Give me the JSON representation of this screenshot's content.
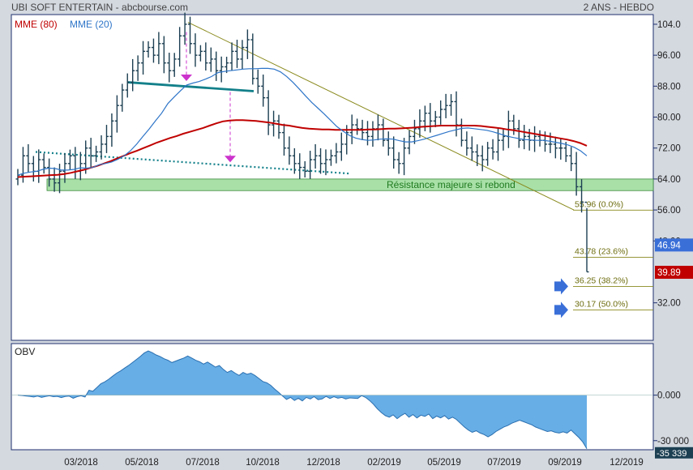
{
  "header": {
    "title": "UBI SOFT ENTERTAIN - abcbourse.com",
    "period": "2 ANS - HEBDO"
  },
  "legend": [
    {
      "name": "MME (80)",
      "color": "#c00000"
    },
    {
      "name": "MME (20)",
      "color": "#2e75c8"
    }
  ],
  "colors": {
    "bars": "#1c3f52",
    "ema80": "#c00000",
    "ema20": "#2e75c8",
    "fibo": "#8a8a1e",
    "support_zone": "#a8e0a8",
    "trendline": "#8a8a1e",
    "obv_fill": "#67aee6",
    "panel_bg": "#ffffff"
  },
  "chart_data": [
    {
      "type": "bar",
      "title": "UBI SOFT ENTERTAIN",
      "subtitle": "2 ANS - HEBDO",
      "xlabel": "",
      "ylabel": "",
      "ylim": [
        22.3,
        106.5
      ],
      "yticks": [
        "104.0",
        "96.00",
        "88.00",
        "80.00",
        "72.00",
        "64.00",
        "56.00",
        "48.00",
        "32.00"
      ],
      "xticks": [
        "03/2018",
        "05/2018",
        "07/2018",
        "10/2018",
        "12/2018",
        "02/2019",
        "05/2019",
        "07/2019",
        "09/2019",
        "12/2019"
      ],
      "price_labels": [
        {
          "value": 46.94,
          "label": "46.94",
          "color": "#3a6fd8"
        },
        {
          "value": 39.89,
          "label": "39.89",
          "color": "#c00000"
        }
      ],
      "fibonacci_levels": [
        {
          "value": 55.96,
          "label": "55.96",
          "pct": "(0.0%)"
        },
        {
          "value": 43.78,
          "label": "43.78",
          "pct": "(23.6%)"
        },
        {
          "value": 36.25,
          "label": "36.25",
          "pct": "(38.2%)"
        },
        {
          "value": 30.17,
          "label": "30.17",
          "pct": "(50.0%)"
        }
      ],
      "annotation": "Résistance majeure si rebond",
      "resistance_zone": [
        61,
        64
      ],
      "close_series": [
        65,
        70,
        68,
        66,
        69,
        67,
        64,
        63,
        66,
        68,
        70,
        66,
        68,
        72,
        70,
        71,
        73,
        75,
        79,
        83,
        87,
        89,
        92,
        94,
        97,
        98,
        96,
        99,
        94,
        92,
        95,
        101,
        104,
        99,
        96,
        97,
        94,
        95,
        92,
        93,
        94,
        97,
        95,
        98,
        100,
        90,
        88,
        85,
        78,
        79,
        76,
        72,
        70,
        68,
        67,
        66,
        69,
        70,
        68,
        69,
        70,
        71,
        73,
        76,
        78,
        77,
        76,
        75,
        77,
        78,
        74,
        72,
        69,
        68,
        72,
        75,
        77,
        79,
        81,
        79,
        80,
        82,
        83,
        84,
        78,
        74,
        72,
        71,
        70,
        69,
        72,
        71,
        74,
        75,
        79,
        77,
        74,
        75,
        74,
        75,
        74,
        73,
        73,
        72,
        72,
        70,
        68,
        62,
        58,
        40
      ],
      "ema20_series": [
        65,
        65.5,
        65.8,
        66,
        66.5,
        66.8,
        66.7,
        66.3,
        66.3,
        66.5,
        66.9,
        66.8,
        67,
        67.7,
        68,
        68.4,
        69.1,
        70,
        71.3,
        73,
        75,
        76.9,
        79,
        81,
        83.5,
        85.2,
        86.8,
        88.3,
        88.8,
        89.2,
        89.8,
        90.5,
        91.5,
        91.8,
        92,
        92.2,
        92.4,
        92.5,
        92.5,
        92.6,
        92.6,
        92.4,
        91.7,
        90.5,
        89,
        87.3,
        85.5,
        83.8,
        82.3,
        80.8,
        79.2,
        77.6,
        76.4,
        75.3,
        74.6,
        74.2,
        74,
        74.1,
        74.3,
        74.4,
        74.3,
        73.9,
        73.6,
        73.6,
        73.9,
        74.3,
        74.8,
        75.3,
        75.8,
        76.3,
        76.7,
        77.1,
        77.2,
        77,
        76.8,
        76.6,
        76.2,
        75.7,
        75.2,
        74.8,
        74.5,
        74.2,
        74.1,
        74,
        74,
        73.8,
        73.5,
        73.2,
        72.8,
        72.2,
        71.3,
        70
      ],
      "ema80_series": [
        64.5,
        64.6,
        64.7,
        64.8,
        64.9,
        65,
        65.1,
        65.3,
        65.6,
        66,
        66.4,
        66.9,
        67.4,
        68,
        68.6,
        69.3,
        70,
        70.7,
        71.3,
        72,
        72.7,
        73.4,
        74,
        74.6,
        75.1,
        75.7,
        76.2,
        76.7,
        77.2,
        77.8,
        78.4,
        78.9,
        79.1,
        79.2,
        79.2,
        79.1,
        79,
        78.8,
        78.6,
        78.3,
        78,
        77.8,
        77.5,
        77.2,
        77,
        76.9,
        76.8,
        76.8,
        76.7,
        76.7,
        76.7,
        76.7,
        76.7,
        76.8,
        76.8,
        76.9,
        77,
        77,
        77.1,
        77.2,
        77.3,
        77.5,
        77.6,
        77.7,
        77.8,
        77.8,
        77.8,
        77.8,
        77.8,
        77.8,
        77.7,
        77.5,
        77.3,
        77.1,
        76.8,
        76.6,
        76.3,
        76,
        75.7,
        75.4,
        75.1,
        74.8,
        74.5,
        74.2,
        73.8,
        73.3,
        72.6
      ]
    },
    {
      "type": "area",
      "title": "OBV",
      "ylim": [
        -36000,
        34000
      ],
      "yticks": [
        "0.000",
        "-30 000"
      ],
      "last_value_label": "-35 339",
      "series": [
        0,
        -200,
        -500,
        -800,
        -1200,
        -600,
        -1500,
        -900,
        -400,
        -1000,
        -800,
        -1600,
        -900,
        -600,
        -2000,
        -1000,
        -400,
        -1200,
        3200,
        2600,
        5000,
        7500,
        8800,
        10500,
        12500,
        14500,
        16000,
        17800,
        19500,
        21500,
        23500,
        25500,
        27800,
        29200,
        28000,
        26500,
        25500,
        24000,
        23000,
        21500,
        22500,
        23500,
        24500,
        25800,
        24500,
        23000,
        22000,
        20500,
        21800,
        20200,
        18500,
        19500,
        17000,
        15000,
        16200,
        14500,
        13000,
        15000,
        13800,
        14500,
        13000,
        11000,
        9000,
        8200,
        6500,
        4000,
        1800,
        -500,
        -2800,
        -1500,
        -3500,
        -2000,
        -3800,
        -1500,
        -2500,
        -1000,
        -3000,
        -2500,
        -800,
        -2200,
        -1000,
        -2000,
        -1500,
        -2500,
        -1800,
        -2000,
        -2200,
        -300,
        -1500,
        -3500,
        -6000,
        -9000,
        -11500,
        -13500,
        -14500,
        -13000,
        -15500,
        -13500,
        -12000,
        -14500,
        -12800,
        -15000,
        -13200,
        -14000,
        -12500,
        -15500,
        -13800,
        -15000,
        -13500,
        -15800,
        -14500,
        -16000,
        -18500,
        -21000,
        -23000,
        -24500,
        -23500,
        -25000,
        -26000,
        -27500,
        -26000,
        -24000,
        -22500,
        -21000,
        -20000,
        -18500,
        -17500,
        -16500,
        -17500,
        -18500,
        -19500,
        -21000,
        -22000,
        -23000,
        -24000,
        -23500,
        -24500,
        -25000,
        -24200,
        -25000,
        -23000,
        -25500,
        -28000,
        -31000,
        -35339
      ]
    }
  ]
}
